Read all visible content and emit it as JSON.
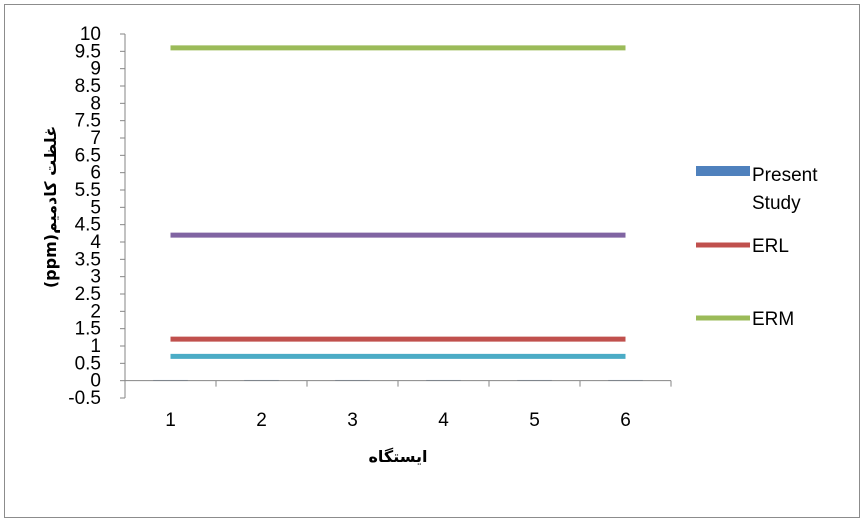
{
  "chart_data": {
    "type": "line",
    "xlabel": "ایستگاه",
    "ylabel": "غلظت کادمیم(ppm)",
    "categories": [
      "1",
      "2",
      "3",
      "4",
      "5",
      "6"
    ],
    "y_ticks": [
      "-0.5",
      "0",
      "0.5",
      "1",
      "1.5",
      "2",
      "2.5",
      "3",
      "3.5",
      "4",
      "4.5",
      "5",
      "5.5",
      "6",
      "6.5",
      "7",
      "7.5",
      "8",
      "8.5",
      "9",
      "9.5",
      "10"
    ],
    "ylim": [
      -0.5,
      10
    ],
    "grid": false,
    "legend_position": "right",
    "series": [
      {
        "name": "Present Study",
        "kind": "bar",
        "color": "#4f81bd",
        "values": [
          0.02,
          0.02,
          0.02,
          0.02,
          0.02,
          0.02
        ]
      },
      {
        "name": "ERL",
        "kind": "line",
        "color": "#c0504d",
        "values": [
          1.2,
          1.2,
          1.2,
          1.2,
          1.2,
          1.2
        ]
      },
      {
        "name": "ERM",
        "kind": "line",
        "color": "#9bbb59",
        "values": [
          9.6,
          9.6,
          9.6,
          9.6,
          9.6,
          9.6
        ]
      },
      {
        "kind": "line",
        "color": "#8064a2",
        "values": [
          4.2,
          4.2,
          4.2,
          4.2,
          4.2,
          4.2
        ]
      },
      {
        "kind": "line",
        "color": "#4bacc6",
        "values": [
          0.7,
          0.7,
          0.7,
          0.7,
          0.7,
          0.7
        ]
      }
    ],
    "legend": [
      {
        "label_lines": [
          "Present",
          "Study"
        ],
        "kind": "bar",
        "color": "#4f81bd"
      },
      {
        "label_lines": [
          "ERL"
        ],
        "kind": "line",
        "color": "#c0504d"
      },
      {
        "label_lines": [
          "ERM"
        ],
        "kind": "line",
        "color": "#9bbb59"
      }
    ]
  }
}
